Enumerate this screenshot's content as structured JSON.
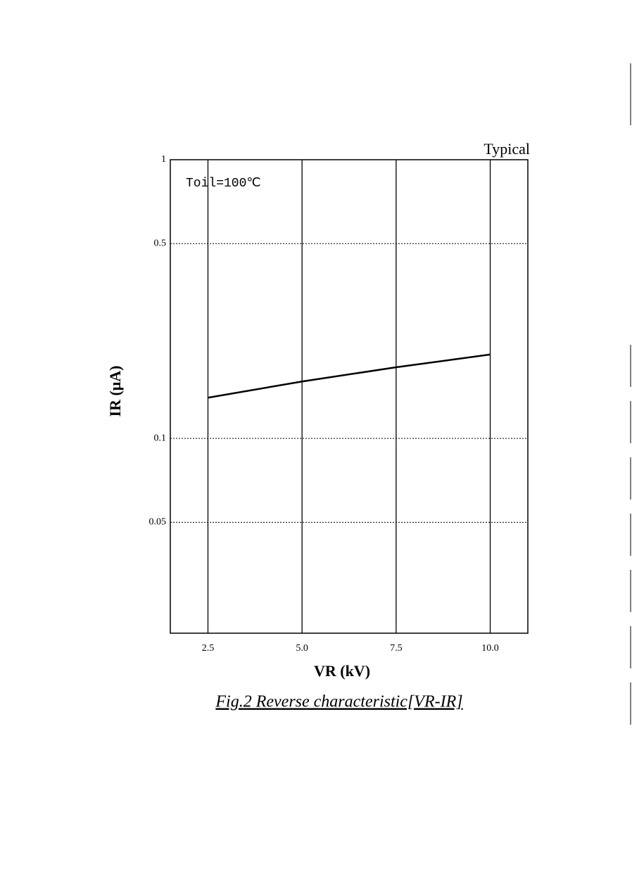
{
  "chart_data": {
    "type": "line",
    "title": "Typical",
    "annotation": "Toil=100℃",
    "x_label": "VR  (kV)",
    "y_label": "IR  (μA)",
    "caption": "Fig.2  Reverse characteristic[VR-IR]",
    "x": [
      2.5,
      5,
      7.5,
      10
    ],
    "series": [
      {
        "name": "Typical",
        "color": "#000000",
        "values": [
          0.14,
          0.16,
          0.18,
          0.2
        ]
      }
    ],
    "xlim": [
      1.5,
      11
    ],
    "ylim": [
      0.02,
      1
    ],
    "xticks": [
      2.5,
      {
        "value": 5,
        "label": "5.0"
      },
      7.5,
      {
        "value": 10,
        "label": "10.0"
      }
    ],
    "yticks": [
      0.05,
      0.1,
      0.5,
      1
    ],
    "y_log": true,
    "grid": true
  }
}
